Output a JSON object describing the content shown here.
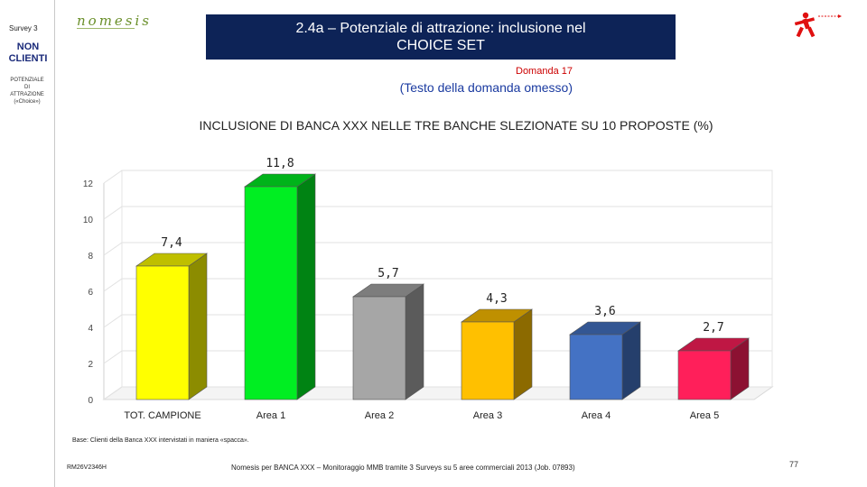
{
  "sidebar": {
    "survey": "Survey 3",
    "segment": [
      "NON",
      "CLIENTI"
    ],
    "sub": [
      "POTENZIALE",
      "DI",
      "ATTRAZIONE",
      "(«Choice»)"
    ]
  },
  "logo": {
    "text": "nomesis"
  },
  "header": {
    "title_line1": "2.4a – Potenziale di attrazione: inclusione nel",
    "title_line2": "CHOICE SET",
    "question_number": "Domanda 17",
    "question_text": "(Testo della domanda omesso)"
  },
  "chart_data": {
    "type": "bar",
    "title": "INCLUSIONE DI BANCA XXX NELLE TRE BANCHE SLEZIONATE SU 10 PROPOSTE (%)",
    "categories": [
      "TOT. CAMPIONE",
      "Area 1",
      "Area 2",
      "Area 3",
      "Area 4",
      "Area 5"
    ],
    "values": [
      7.4,
      11.8,
      5.7,
      4.3,
      3.6,
      2.7
    ],
    "value_labels": [
      "7,4",
      "11,8",
      "5,7",
      "4,3",
      "3,6",
      "2,7"
    ],
    "colors": [
      "#ffff00",
      "#00ee22",
      "#a6a6a6",
      "#ffc000",
      "#4472c4",
      "#ff1f5a"
    ],
    "ylim": [
      0,
      12
    ],
    "yticks": [
      0,
      2,
      4,
      6,
      8,
      10,
      12
    ],
    "grid": true,
    "legend": "none",
    "xlabel": "",
    "ylabel": ""
  },
  "footer": {
    "base_note": "Base: Clienti della Banca XXX intervistati in maniera «spacca».",
    "code": "RM26V2346H",
    "text": "Nomesis per BANCA XXX – Monitoraggio MMB tramite 3 Surveys su 5 aree commerciali 2013 (Job. 07893)",
    "page": "77"
  }
}
